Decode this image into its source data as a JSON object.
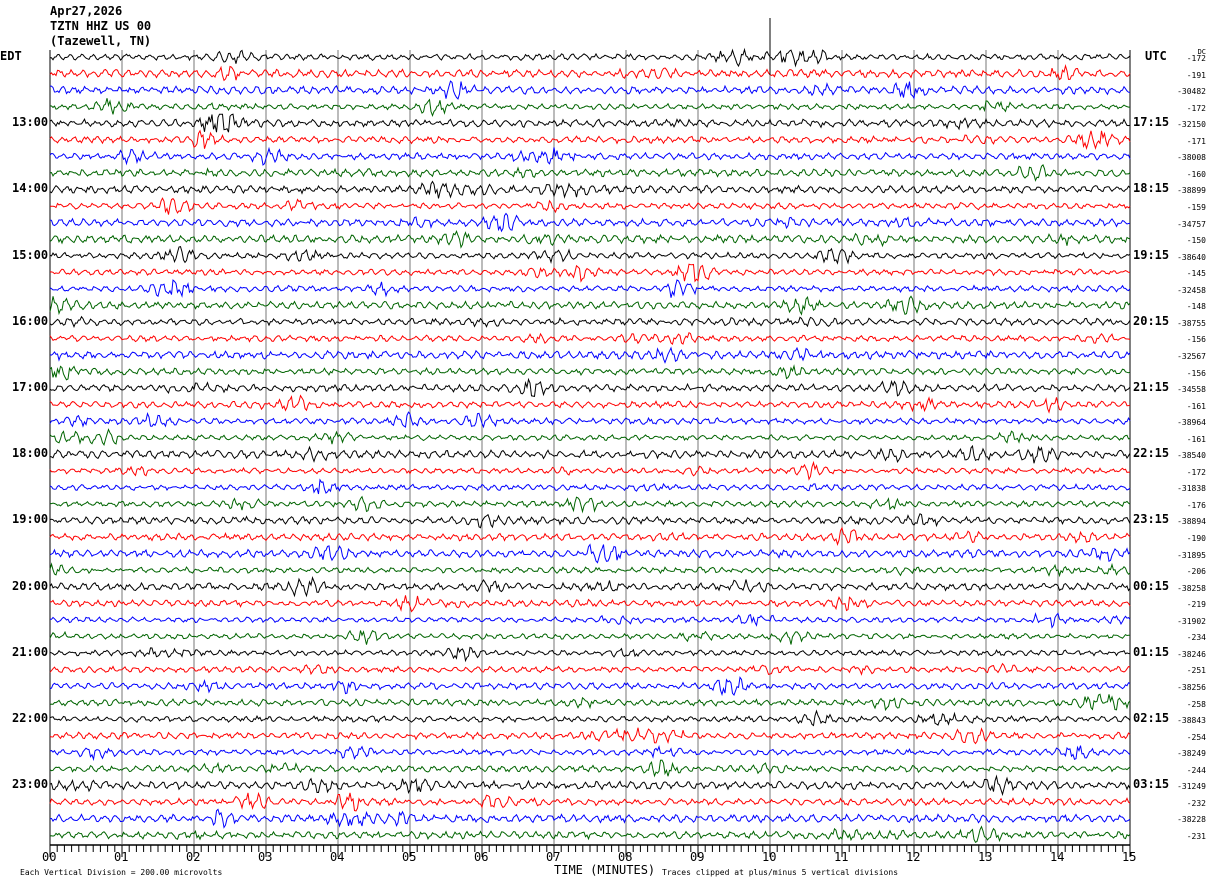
{
  "header": {
    "date": "Apr27,2026",
    "station": "TZTN HHZ US 00",
    "location": "(Tazewell, TN)"
  },
  "left_zone": "EDT",
  "right_zone": "UTC",
  "dc_label": "DC",
  "footer": {
    "scale": "Each Vertical Division =  200.00 microvolts",
    "clip": "Traces clipped at plus/minus 5 vertical divisions"
  },
  "colors": [
    "#000000",
    "#ff0000",
    "#0000ff",
    "#006400"
  ],
  "chart_data": {
    "type": "helicorder",
    "xlabel": "TIME (MINUTES)",
    "xlim": [
      0,
      15
    ],
    "x_ticks": [
      "00",
      "01",
      "02",
      "03",
      "04",
      "05",
      "06",
      "07",
      "08",
      "09",
      "10",
      "11",
      "12",
      "13",
      "14",
      "15"
    ],
    "traces_per_hour": 4,
    "left_hour_labels": [
      "13:00",
      "14:00",
      "15:00",
      "16:00",
      "17:00",
      "18:00",
      "19:00",
      "20:00",
      "21:00",
      "22:00",
      "23:00"
    ],
    "right_hour_labels": [
      "17:15",
      "18:15",
      "19:15",
      "20:15",
      "21:15",
      "22:15",
      "23:15",
      "00:15",
      "01:15",
      "02:15",
      "03:15"
    ],
    "dc_offsets": [
      "-172",
      "-191",
      "-30482",
      "-172",
      "-32150",
      "-171",
      "-38008",
      "-160",
      "-38899",
      "-159",
      "-34757",
      "-150",
      "-38640",
      "-145",
      "-32458",
      "-148",
      "-38755",
      "-156",
      "-32567",
      "-156",
      "-34558",
      "-161",
      "-38964",
      "-161",
      "-38540",
      "-172",
      "-31838",
      "-176",
      "-38894",
      "-190",
      "-31895",
      "-206",
      "-38258",
      "-219",
      "-31902",
      "-234",
      "-38246",
      "-251",
      "-38256",
      "-258",
      "-38843",
      "-254",
      "-38249",
      "-244",
      "-31249",
      "-232",
      "-38228",
      "-231"
    ]
  }
}
